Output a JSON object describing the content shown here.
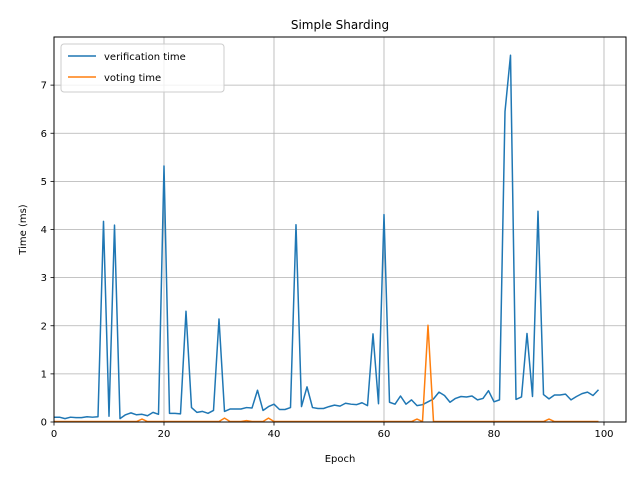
{
  "chart_data": {
    "type": "line",
    "title": "Simple Sharding",
    "xlabel": "Epoch",
    "ylabel": "Time (ms)",
    "xlim": [
      0,
      104
    ],
    "ylim": [
      0,
      8
    ],
    "xticks": [
      0,
      20,
      40,
      60,
      80,
      100
    ],
    "yticks": [
      0,
      1,
      2,
      3,
      4,
      5,
      6,
      7
    ],
    "grid": true,
    "legend_position": "top-left",
    "series": [
      {
        "name": "verification time",
        "color": "#1f77b4",
        "x": [
          0,
          1,
          2,
          3,
          4,
          5,
          6,
          7,
          8,
          9,
          10,
          11,
          12,
          13,
          14,
          15,
          16,
          17,
          18,
          19,
          20,
          21,
          22,
          23,
          24,
          25,
          26,
          27,
          28,
          29,
          30,
          31,
          32,
          33,
          34,
          35,
          36,
          37,
          38,
          39,
          40,
          41,
          42,
          43,
          44,
          45,
          46,
          47,
          48,
          49,
          50,
          51,
          52,
          53,
          54,
          55,
          56,
          57,
          58,
          59,
          60,
          61,
          62,
          63,
          64,
          65,
          66,
          67,
          68,
          69,
          70,
          71,
          72,
          73,
          74,
          75,
          76,
          77,
          78,
          79,
          80,
          81,
          82,
          83,
          84,
          85,
          86,
          87,
          88,
          89,
          90,
          91,
          92,
          93,
          94,
          95,
          96,
          97,
          98,
          99
        ],
        "y": [
          0.1,
          0.1,
          0.07,
          0.1,
          0.09,
          0.09,
          0.11,
          0.1,
          0.11,
          4.17,
          0.12,
          4.09,
          0.07,
          0.15,
          0.19,
          0.15,
          0.16,
          0.13,
          0.2,
          0.16,
          5.32,
          0.18,
          0.18,
          0.17,
          2.3,
          0.3,
          0.2,
          0.22,
          0.18,
          0.24,
          2.14,
          0.22,
          0.27,
          0.27,
          0.27,
          0.3,
          0.29,
          0.66,
          0.24,
          0.32,
          0.37,
          0.26,
          0.26,
          0.3,
          4.1,
          0.32,
          0.73,
          0.3,
          0.28,
          0.28,
          0.32,
          0.35,
          0.33,
          0.39,
          0.37,
          0.36,
          0.4,
          0.34,
          1.83,
          0.38,
          4.31,
          0.41,
          0.37,
          0.54,
          0.37,
          0.46,
          0.34,
          0.36,
          0.42,
          0.48,
          0.62,
          0.55,
          0.41,
          0.49,
          0.53,
          0.52,
          0.54,
          0.46,
          0.49,
          0.65,
          0.42,
          0.46,
          6.45,
          7.62,
          0.47,
          0.52,
          1.84,
          0.53,
          4.38,
          0.57,
          0.48,
          0.56,
          0.56,
          0.58,
          0.46,
          0.53,
          0.59,
          0.62,
          0.55,
          0.67
        ]
      },
      {
        "name": "voting time",
        "color": "#ff7f0e",
        "x": [
          0,
          1,
          2,
          3,
          4,
          5,
          6,
          7,
          8,
          9,
          10,
          11,
          12,
          13,
          14,
          15,
          16,
          17,
          18,
          19,
          20,
          21,
          22,
          23,
          24,
          25,
          26,
          27,
          28,
          29,
          30,
          31,
          32,
          33,
          34,
          35,
          36,
          37,
          38,
          39,
          40,
          41,
          42,
          43,
          44,
          45,
          46,
          47,
          48,
          49,
          50,
          51,
          52,
          53,
          54,
          55,
          56,
          57,
          58,
          59,
          60,
          61,
          62,
          63,
          64,
          65,
          66,
          67,
          68,
          69,
          70,
          71,
          72,
          73,
          74,
          75,
          76,
          77,
          78,
          79,
          80,
          81,
          82,
          83,
          84,
          85,
          86,
          87,
          88,
          89,
          90,
          91,
          92,
          93,
          94,
          95,
          96,
          97,
          98,
          99
        ],
        "y": [
          0.01,
          0.01,
          0.01,
          0.01,
          0.01,
          0.01,
          0.01,
          0.01,
          0.01,
          0.01,
          0.01,
          0.01,
          0.01,
          0.01,
          0.01,
          0.01,
          0.06,
          0.01,
          0.01,
          0.01,
          0.01,
          0.01,
          0.01,
          0.01,
          0.01,
          0.01,
          0.01,
          0.01,
          0.01,
          0.01,
          0.01,
          0.08,
          0.01,
          0.01,
          0.01,
          0.03,
          0.01,
          0.01,
          0.01,
          0.08,
          0.01,
          0.01,
          0.01,
          0.01,
          0.01,
          0.01,
          0.01,
          0.01,
          0.01,
          0.01,
          0.01,
          0.01,
          0.01,
          0.01,
          0.01,
          0.01,
          0.01,
          0.01,
          0.01,
          0.01,
          0.01,
          0.01,
          0.01,
          0.01,
          0.01,
          0.01,
          0.06,
          0.01,
          2.01,
          0.01,
          0.01,
          0.01,
          0.01,
          0.01,
          0.01,
          0.01,
          0.01,
          0.01,
          0.01,
          0.01,
          0.01,
          0.01,
          0.01,
          0.01,
          0.01,
          0.01,
          0.01,
          0.01,
          0.01,
          0.01,
          0.06,
          0.01,
          0.01,
          0.01,
          0.01,
          0.01,
          0.01,
          0.01,
          0.01,
          0.01
        ]
      }
    ]
  }
}
